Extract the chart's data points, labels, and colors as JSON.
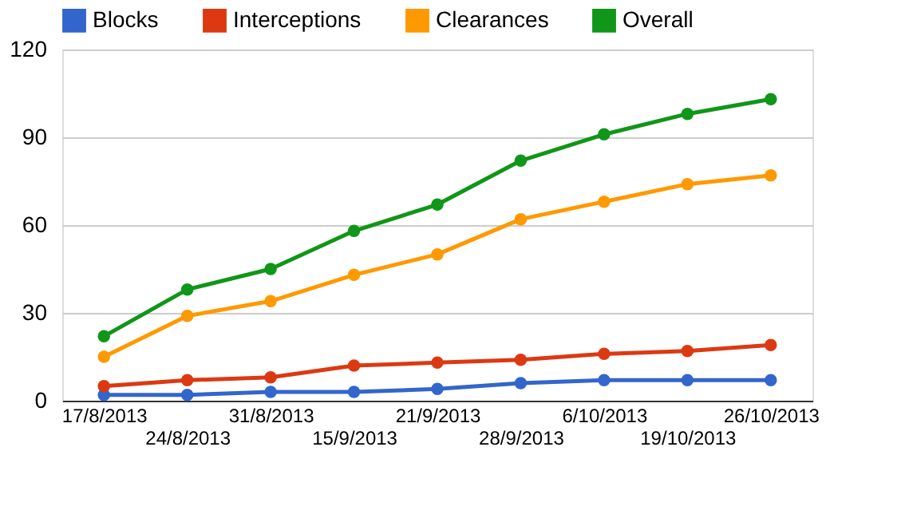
{
  "chart_data": {
    "type": "line",
    "categories": [
      "17/8/2013",
      "24/8/2013",
      "31/8/2013",
      "15/9/2013",
      "21/9/2013",
      "28/9/2013",
      "6/10/2013",
      "19/10/2013",
      "26/10/2013"
    ],
    "series": [
      {
        "name": "Blocks",
        "color": "#3366cc",
        "values": [
          2,
          2,
          3,
          3,
          4,
          6,
          7,
          7,
          7
        ]
      },
      {
        "name": "Interceptions",
        "color": "#dc3912",
        "values": [
          5,
          7,
          8,
          12,
          13,
          14,
          16,
          17,
          19
        ]
      },
      {
        "name": "Clearances",
        "color": "#ff9900",
        "values": [
          15,
          29,
          34,
          43,
          50,
          62,
          68,
          74,
          77
        ]
      },
      {
        "name": "Overall",
        "color": "#109618",
        "values": [
          22,
          38,
          45,
          58,
          67,
          82,
          91,
          98,
          103
        ]
      }
    ],
    "ylim": [
      0,
      120
    ],
    "yticks": [
      0,
      30,
      60,
      90,
      120
    ],
    "grid": "y",
    "legend": "top left",
    "marker": "circle",
    "line_style": "solid"
  }
}
